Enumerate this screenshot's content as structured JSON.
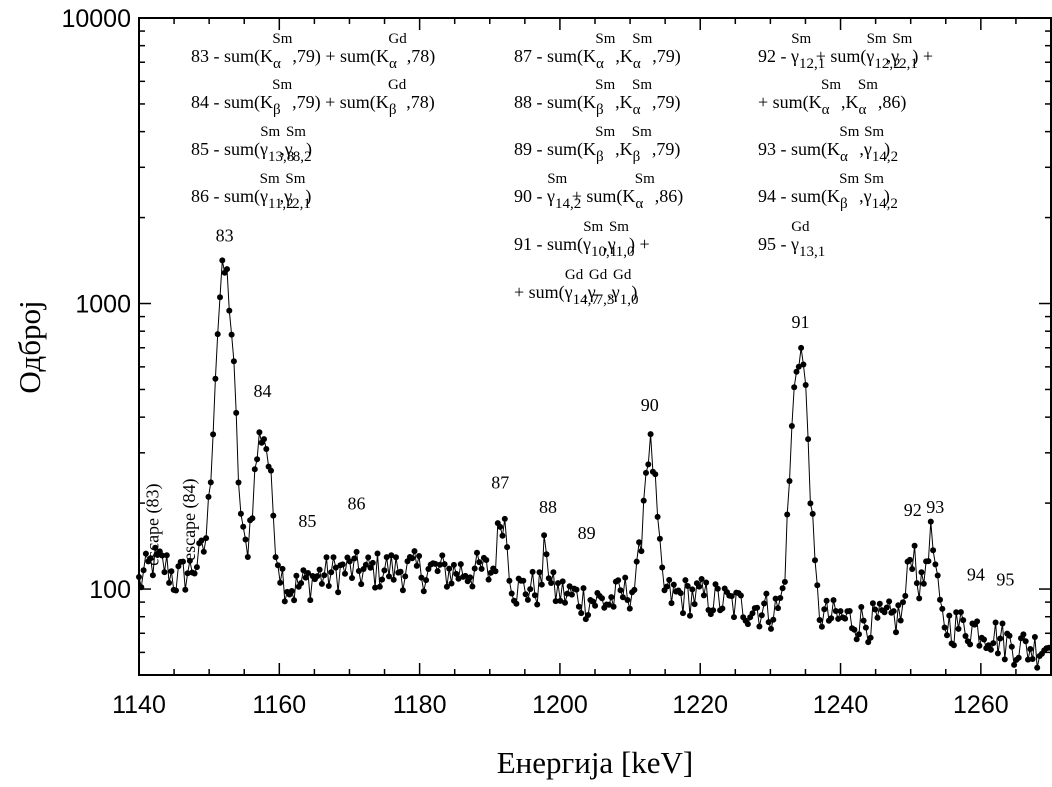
{
  "chart_data": {
    "type": "scatter",
    "xlabel": "Енергија [keV]",
    "ylabel": "Одброј",
    "xlim": [
      1140,
      1270
    ],
    "ylim": [
      50,
      10000
    ],
    "y_scale": "log",
    "x_ticks": [
      1140,
      1160,
      1180,
      1200,
      1220,
      1240,
      1260
    ],
    "x_tick_labels": [
      "1140",
      "1160",
      "1180",
      "1200",
      "1220",
      "1240",
      "1260"
    ],
    "y_ticks": [
      100,
      1000,
      10000
    ],
    "y_tick_labels": [
      "100",
      "1000",
      "10000"
    ],
    "background": [
      [
        1140,
        105
      ],
      [
        1142,
        125
      ],
      [
        1144,
        120
      ],
      [
        1145,
        108
      ],
      [
        1147,
        115
      ],
      [
        1149,
        130
      ],
      [
        1160,
        110
      ],
      [
        1162,
        100
      ],
      [
        1165,
        110
      ],
      [
        1170,
        118
      ],
      [
        1172,
        115
      ],
      [
        1175,
        118
      ],
      [
        1180,
        117
      ],
      [
        1185,
        115
      ],
      [
        1189,
        117
      ],
      [
        1194,
        100
      ],
      [
        1198,
        102
      ],
      [
        1200,
        97
      ],
      [
        1204,
        92
      ],
      [
        1207,
        90
      ],
      [
        1210,
        100
      ],
      [
        1216,
        95
      ],
      [
        1220,
        95
      ],
      [
        1225,
        88
      ],
      [
        1230,
        85
      ],
      [
        1238,
        80
      ],
      [
        1242,
        78
      ],
      [
        1246,
        77
      ],
      [
        1248,
        80
      ],
      [
        1256,
        75
      ],
      [
        1260,
        73
      ],
      [
        1264,
        65
      ],
      [
        1267,
        62
      ],
      [
        1270,
        64
      ]
    ],
    "peaks": [
      {
        "center": 1152.2,
        "height": 1170,
        "sigma": 0.95
      },
      {
        "center": 1157.6,
        "height": 240,
        "sigma": 1.0
      },
      {
        "center": 1191.8,
        "height": 75,
        "sigma": 0.6
      },
      {
        "center": 1198.0,
        "height": 45,
        "sigma": 0.3
      },
      {
        "center": 1212.8,
        "height": 215,
        "sigma": 0.75
      },
      {
        "center": 1234.2,
        "height": 610,
        "sigma": 0.9
      },
      {
        "center": 1250.3,
        "height": 60,
        "sigma": 0.65
      },
      {
        "center": 1252.8,
        "height": 75,
        "sigma": 0.65
      }
    ],
    "peak_labels": [
      {
        "text": "83",
        "x": 1152.2,
        "y": 1650
      },
      {
        "text": "84",
        "x": 1157.6,
        "y": 470
      },
      {
        "text": "85",
        "x": 1164.0,
        "y": 165
      },
      {
        "text": "86",
        "x": 1171.0,
        "y": 190
      },
      {
        "text": "87",
        "x": 1191.5,
        "y": 225
      },
      {
        "text": "88",
        "x": 1198.3,
        "y": 185
      },
      {
        "text": "89",
        "x": 1203.8,
        "y": 150
      },
      {
        "text": "90",
        "x": 1212.8,
        "y": 420
      },
      {
        "text": "91",
        "x": 1234.3,
        "y": 820
      },
      {
        "text": "92",
        "x": 1250.3,
        "y": 180
      },
      {
        "text": "93",
        "x": 1253.5,
        "y": 185
      },
      {
        "text": "94",
        "x": 1259.3,
        "y": 107
      },
      {
        "text": "95",
        "x": 1263.5,
        "y": 103
      }
    ],
    "rotated_labels": [
      {
        "text": "escape (83)",
        "x": 1142.8,
        "y": 168
      },
      {
        "text": "escape (84)",
        "x": 1148.0,
        "y": 175
      }
    ]
  },
  "legend_lines": [
    [
      {
        "t": "83 - sum(K"
      },
      {
        "t": "α",
        "sub": true
      },
      {
        "t": "Sm",
        "sup": true,
        "back": true
      },
      {
        "t": ",79) + sum(K"
      },
      {
        "t": "α",
        "sub": true
      },
      {
        "t": "Gd",
        "sup": true,
        "back": true
      },
      {
        "t": ",78)"
      }
    ],
    [
      {
        "t": "84 - sum(K"
      },
      {
        "t": "β",
        "sub": true
      },
      {
        "t": "Sm",
        "sup": true,
        "back": true
      },
      {
        "t": ",79) +  sum(K"
      },
      {
        "t": "β",
        "sub": true
      },
      {
        "t": "Gd",
        "sup": true,
        "back": true
      },
      {
        "t": ",78)"
      }
    ],
    [
      {
        "t": "85 - sum(γ"
      },
      {
        "t": "13,8",
        "sub": true
      },
      {
        "t": "Sm",
        "sup": true,
        "back": true
      },
      {
        "t": ",γ"
      },
      {
        "t": "8,2",
        "sub": true
      },
      {
        "t": "Sm",
        "sup": true,
        "back": true
      },
      {
        "t": ")"
      }
    ],
    [
      {
        "t": "86 - sum(γ"
      },
      {
        "t": "11,2",
        "sub": true
      },
      {
        "t": "Sm",
        "sup": true,
        "back": true
      },
      {
        "t": ",γ"
      },
      {
        "t": "2,1",
        "sub": true
      },
      {
        "t": "Sm",
        "sup": true,
        "back": true
      },
      {
        "t": ")"
      }
    ],
    [
      {
        "t": "87 - sum(K"
      },
      {
        "t": "α",
        "sub": true
      },
      {
        "t": "Sm",
        "sup": true,
        "back": true
      },
      {
        "t": ",K"
      },
      {
        "t": "α",
        "sub": true
      },
      {
        "t": "Sm",
        "sup": true,
        "back": true
      },
      {
        "t": ",79)"
      }
    ],
    [
      {
        "t": "88 - sum(K"
      },
      {
        "t": "β",
        "sub": true
      },
      {
        "t": "Sm",
        "sup": true,
        "back": true
      },
      {
        "t": ",K"
      },
      {
        "t": "α",
        "sub": true
      },
      {
        "t": "Sm",
        "sup": true,
        "back": true
      },
      {
        "t": ",79)"
      }
    ],
    [
      {
        "t": "89 - sum(K"
      },
      {
        "t": "β",
        "sub": true
      },
      {
        "t": "Sm",
        "sup": true,
        "back": true
      },
      {
        "t": ",K"
      },
      {
        "t": "β",
        "sub": true
      },
      {
        "t": "Sm",
        "sup": true,
        "back": true
      },
      {
        "t": ",79)"
      }
    ],
    [
      {
        "t": "90 - γ"
      },
      {
        "t": "14,2",
        "sub": true
      },
      {
        "t": "Sm",
        "sup": true,
        "back": true
      },
      {
        "t": " + sum(K"
      },
      {
        "t": "α",
        "sub": true
      },
      {
        "t": "Sm",
        "sup": true,
        "back": true
      },
      {
        "t": ",86)"
      }
    ],
    [
      {
        "t": "91 - sum(γ"
      },
      {
        "t": "10,1",
        "sub": true
      },
      {
        "t": "Sm",
        "sup": true,
        "back": true
      },
      {
        "t": ",γ"
      },
      {
        "t": "1,0",
        "sub": true
      },
      {
        "t": "Sm",
        "sup": true,
        "back": true
      },
      {
        "t": ") +"
      }
    ],
    [
      {
        "t": "+ sum(γ"
      },
      {
        "t": "14,7",
        "sub": true
      },
      {
        "t": "Gd",
        "sup": true,
        "back": true
      },
      {
        "t": ",γ"
      },
      {
        "t": "7,3",
        "sub": true
      },
      {
        "t": "Gd",
        "sup": true,
        "back": true
      },
      {
        "t": ",γ"
      },
      {
        "t": "1,0",
        "sub": true
      },
      {
        "t": "Gd",
        "sup": true,
        "back": true
      },
      {
        "t": ")"
      }
    ],
    [
      {
        "t": "92 - γ"
      },
      {
        "t": "12,1",
        "sub": true
      },
      {
        "t": "Sm",
        "sup": true,
        "back": true
      },
      {
        "t": " + sum(γ"
      },
      {
        "t": "12,2",
        "sub": true
      },
      {
        "t": "Sm",
        "sup": true,
        "back": true
      },
      {
        "t": ",γ"
      },
      {
        "t": "2,1",
        "sub": true
      },
      {
        "t": "Sm",
        "sup": true,
        "back": true
      },
      {
        "t": ") +"
      }
    ],
    [
      {
        "t": "+ sum(K"
      },
      {
        "t": "α",
        "sub": true
      },
      {
        "t": "Sm",
        "sup": true,
        "back": true
      },
      {
        "t": ",K"
      },
      {
        "t": "α",
        "sub": true
      },
      {
        "t": "Sm",
        "sup": true,
        "back": true
      },
      {
        "t": ",86)"
      }
    ],
    [
      {
        "t": "93 - sum(K"
      },
      {
        "t": "α",
        "sub": true
      },
      {
        "t": "Sm",
        "sup": true,
        "back": true
      },
      {
        "t": ",γ"
      },
      {
        "t": "14,2",
        "sub": true
      },
      {
        "t": "Sm",
        "sup": true,
        "back": true
      },
      {
        "t": ")"
      }
    ],
    [
      {
        "t": "94 - sum(K"
      },
      {
        "t": "β",
        "sub": true
      },
      {
        "t": "Sm",
        "sup": true,
        "back": true
      },
      {
        "t": ",γ"
      },
      {
        "t": "14,2",
        "sub": true
      },
      {
        "t": "Sm",
        "sup": true,
        "back": true
      },
      {
        "t": ")"
      }
    ],
    [
      {
        "t": "95 - γ"
      },
      {
        "t": "13,1",
        "sub": true
      },
      {
        "t": "Gd",
        "sup": true,
        "back": true
      }
    ]
  ]
}
